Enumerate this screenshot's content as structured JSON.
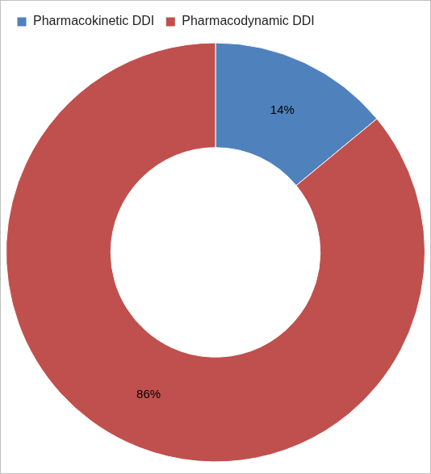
{
  "chart_data": {
    "type": "doughnut",
    "categories": [
      "Pharmacokinetic DDI",
      "Pharmacodynamic DDI"
    ],
    "values": [
      14,
      86
    ],
    "value_labels": [
      "14%",
      "86%"
    ],
    "colors": [
      "#4f81bd",
      "#c0504d"
    ],
    "legend": "top-left",
    "data_labels": true
  }
}
